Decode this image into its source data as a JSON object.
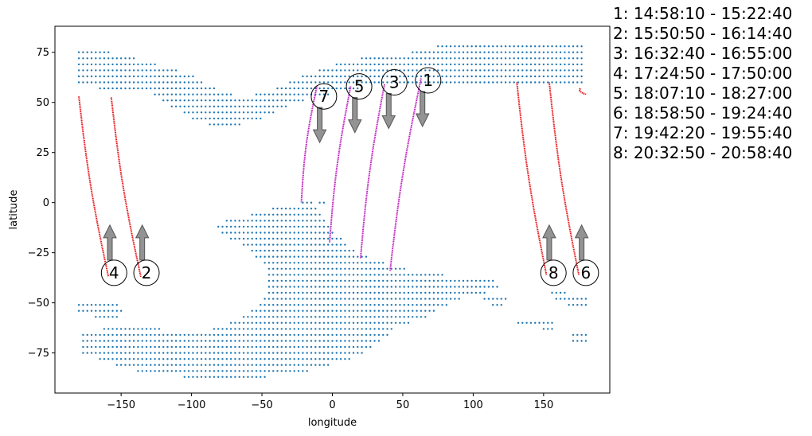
{
  "chart_data": {
    "type": "scatter",
    "xlabel": "longitude",
    "ylabel": "latitude",
    "xlim": [
      -197,
      197
    ],
    "ylim": [
      -95,
      88
    ],
    "xticks": [
      -150,
      -100,
      -50,
      0,
      50,
      100,
      150
    ],
    "yticks": [
      -75,
      -50,
      -25,
      0,
      25,
      50,
      75
    ],
    "grid": false,
    "colors": {
      "land": "#1f77b4",
      "red_track": "#e8141a",
      "magenta_track": "#c01ec0",
      "arrow": "#808080"
    },
    "land_dots": {
      "step": 3,
      "polygons": [
        [
          [
            -180,
            77
          ],
          [
            -165,
            76
          ],
          [
            -150,
            74
          ],
          [
            -130,
            70
          ],
          [
            -115,
            67
          ],
          [
            -100,
            64
          ],
          [
            -90,
            60
          ],
          [
            -80,
            56
          ],
          [
            -70,
            54
          ],
          [
            -55,
            54
          ],
          [
            -40,
            57
          ],
          [
            -25,
            62
          ],
          [
            -5,
            68
          ],
          [
            20,
            72
          ],
          [
            50,
            74
          ],
          [
            75,
            78
          ],
          [
            100,
            79
          ],
          [
            130,
            79
          ],
          [
            160,
            79
          ],
          [
            180,
            78
          ],
          [
            180,
            58
          ],
          [
            160,
            59
          ],
          [
            130,
            60
          ],
          [
            100,
            60
          ],
          [
            70,
            60
          ],
          [
            40,
            59
          ],
          [
            10,
            56
          ],
          [
            -15,
            52
          ],
          [
            -30,
            48
          ],
          [
            -50,
            42
          ],
          [
            -70,
            38
          ],
          [
            -85,
            38
          ],
          [
            -100,
            42
          ],
          [
            -115,
            48
          ],
          [
            -130,
            55
          ],
          [
            -150,
            56
          ],
          [
            -165,
            57
          ],
          [
            -180,
            58
          ]
        ],
        [
          [
            -85,
            -13
          ],
          [
            -75,
            -9
          ],
          [
            -58,
            -6
          ],
          [
            -42,
            -3
          ],
          [
            -28,
            -1
          ],
          [
            -16,
            1
          ],
          [
            -10,
            -4
          ],
          [
            -5,
            -7
          ],
          [
            3,
            -15
          ],
          [
            10,
            -20
          ],
          [
            22,
            -26
          ],
          [
            40,
            -31
          ],
          [
            60,
            -34
          ],
          [
            90,
            -37
          ],
          [
            115,
            -39
          ],
          [
            122,
            -41
          ],
          [
            115,
            -44
          ],
          [
            95,
            -47
          ],
          [
            80,
            -52
          ],
          [
            70,
            -56
          ],
          [
            60,
            -59
          ],
          [
            45,
            -63
          ],
          [
            30,
            -72
          ],
          [
            10,
            -79
          ],
          [
            -15,
            -84
          ],
          [
            -45,
            -87
          ],
          [
            -75,
            -87
          ],
          [
            -105,
            -87
          ],
          [
            -135,
            -85
          ],
          [
            -160,
            -80
          ],
          [
            -178,
            -75
          ],
          [
            -178,
            -64
          ],
          [
            -150,
            -62
          ],
          [
            -120,
            -63
          ],
          [
            -100,
            -65
          ],
          [
            -80,
            -62
          ],
          [
            -65,
            -58
          ],
          [
            -52,
            -50
          ],
          [
            -45,
            -42
          ],
          [
            -48,
            -32
          ],
          [
            -58,
            -24
          ],
          [
            -75,
            -17
          ]
        ],
        [
          [
            -180,
            -49
          ],
          [
            -160,
            -49
          ],
          [
            -145,
            -52
          ],
          [
            -150,
            -57
          ],
          [
            -170,
            -57
          ],
          [
            -180,
            -55
          ]
        ],
        [
          [
            108,
            -45
          ],
          [
            122,
            -45
          ],
          [
            125,
            -50
          ],
          [
            118,
            -53
          ],
          [
            108,
            -50
          ]
        ],
        [
          [
            130,
            -57
          ],
          [
            150,
            -57
          ],
          [
            150,
            -62
          ],
          [
            132,
            -62
          ]
        ],
        [
          [
            148,
            -57
          ],
          [
            158,
            -57
          ],
          [
            158,
            -64
          ],
          [
            148,
            -64
          ]
        ],
        [
          [
            170,
            -63
          ],
          [
            181,
            -63
          ],
          [
            181,
            -69
          ],
          [
            170,
            -69
          ]
        ],
        [
          [
            155,
            -44
          ],
          [
            168,
            -45
          ],
          [
            182,
            -48
          ],
          [
            182,
            -54
          ],
          [
            170,
            -52
          ],
          [
            158,
            -49
          ]
        ],
        [
          [
            -10,
            0
          ],
          [
            -5,
            3
          ],
          [
            -3,
            -1
          ],
          [
            -8,
            -2
          ]
        ]
      ]
    },
    "tracks": [
      {
        "id": "1",
        "color": "red",
        "start": [
          -180.0,
          53.0
        ],
        "end": [
          -159.0,
          -37.0
        ],
        "marker": "4",
        "arrow": "up"
      },
      {
        "id": "2",
        "color": "red",
        "start": [
          -157.0,
          52.5
        ],
        "end": [
          -136.0,
          -37.0
        ],
        "marker": "2",
        "arrow": "up"
      },
      {
        "id": "3",
        "color": "red",
        "start": [
          131.0,
          60.0
        ],
        "end": [
          152.0,
          -36.0
        ],
        "marker": "8",
        "arrow": "up"
      },
      {
        "id": "4",
        "color": "red",
        "start": [
          154.0,
          60.0
        ],
        "end": [
          175.0,
          -36.0
        ],
        "marker": "6",
        "arrow": "up"
      },
      {
        "id": "5",
        "color": "red",
        "start": [
          176.0,
          57.0
        ],
        "end": [
          180.0,
          54.0
        ],
        "marker": null,
        "arrow": null
      },
      {
        "id": "6",
        "color": "magenta",
        "start": [
          -11.0,
          58.0
        ],
        "end": [
          -22.0,
          0.0
        ],
        "marker": "7",
        "arrow": "down"
      },
      {
        "id": "7",
        "color": "magenta",
        "start": [
          13.0,
          58.0
        ],
        "end": [
          -2.0,
          -20.0
        ],
        "marker": "5",
        "arrow": "down"
      },
      {
        "id": "8",
        "color": "magenta",
        "start": [
          37.0,
          59.0
        ],
        "end": [
          20.0,
          -28.0
        ],
        "marker": "3",
        "arrow": "down"
      },
      {
        "id": "9",
        "color": "magenta",
        "start": [
          63.0,
          62.0
        ],
        "end": [
          41.0,
          -34.0
        ],
        "marker": "1",
        "arrow": "down"
      }
    ],
    "markers": [
      {
        "label": "1",
        "lon": 68,
        "lat": 61,
        "arrow_lon": 64,
        "arrow": "down"
      },
      {
        "label": "3",
        "lon": 44,
        "lat": 60,
        "arrow_lon": 40,
        "arrow": "down"
      },
      {
        "label": "5",
        "lon": 19,
        "lat": 58,
        "arrow_lon": 16,
        "arrow": "down"
      },
      {
        "label": "7",
        "lon": -6,
        "lat": 53,
        "arrow_lon": -9,
        "arrow": "down"
      },
      {
        "label": "4",
        "lon": -155,
        "lat": -35,
        "arrow_lon": -158,
        "arrow": "up"
      },
      {
        "label": "2",
        "lon": -132,
        "lat": -35,
        "arrow_lon": -135,
        "arrow": "up"
      },
      {
        "label": "8",
        "lon": 157,
        "lat": -35,
        "arrow_lon": 154,
        "arrow": "up"
      },
      {
        "label": "6",
        "lon": 180,
        "lat": -35,
        "arrow_lon": 177,
        "arrow": "up"
      }
    ],
    "legend_lines": [
      "1:  14:58:10 - 15:22:40",
      "2:  15:50:50 - 16:14:40",
      "3:  16:32:40 - 16:55:00",
      "4:  17:24:50 - 17:50:00",
      "5:  18:07:10 - 18:27:00",
      "6:  18:58:50 - 19:24:40",
      "7:  19:42:20 - 19:55:40",
      "8:  20:32:50 - 20:58:40"
    ]
  }
}
